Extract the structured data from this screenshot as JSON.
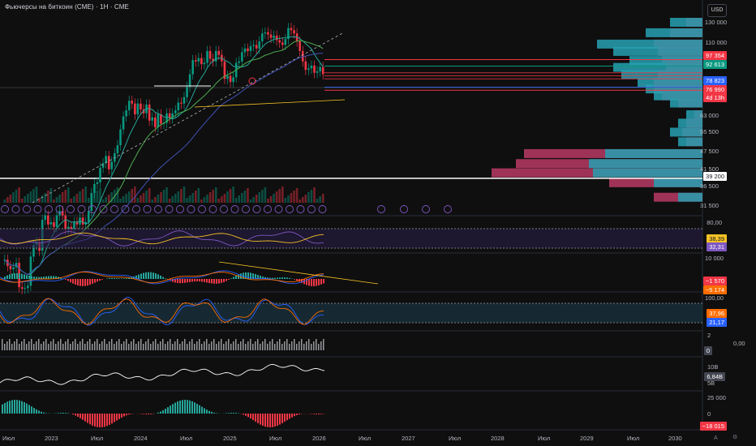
{
  "header": {
    "title": "Фьючерсы на биткоин (CME) · 1Н · CME",
    "currency": "USD"
  },
  "price_axis": {
    "ticks": [
      "130 000",
      "110 000",
      "63 000",
      "55 500",
      "47 500",
      "41 500",
      "36 500",
      "31 500"
    ]
  },
  "price_badges": [
    {
      "label": "97 354",
      "color": "#f23645"
    },
    {
      "label": "92 613",
      "color": "#089981"
    },
    {
      "label": "78 823",
      "color": "#2962ff"
    },
    {
      "label": "76 990",
      "color": "#f23645"
    },
    {
      "label": "4d 13h",
      "color": "#f23645"
    },
    {
      "label": "39 200",
      "color": "#ffffff",
      "text_color": "#131722"
    }
  ],
  "rsi_panel": {
    "ticks": [
      "80,00"
    ],
    "badges": [
      {
        "label": "38,39",
        "color": "#f7c325",
        "text_color": "#131722"
      },
      {
        "label": "32,31",
        "color": "#7e57c2"
      }
    ]
  },
  "macd_panel": {
    "ticks": [
      "10 000"
    ],
    "badges": [
      {
        "label": "−1 570",
        "color": "#f23645"
      },
      {
        "label": "−5 174",
        "color": "#ff6d00"
      }
    ]
  },
  "stoch_panel": {
    "ticks": [
      "100,00"
    ],
    "badges": [
      {
        "label": "37,96",
        "color": "#ff6d00"
      },
      {
        "label": "21,17",
        "color": "#2962ff"
      }
    ]
  },
  "vol_panel": {
    "ticks": [
      "2"
    ],
    "badges": [
      {
        "label": "0",
        "color": "#434651"
      }
    ],
    "extra": "0,00"
  },
  "obv_panel": {
    "ticks": [
      "10B",
      "5B"
    ],
    "badges": [
      {
        "label": "6,84B",
        "color": "#434651"
      }
    ]
  },
  "osc_panel": {
    "ticks": [
      "25 000",
      "0"
    ],
    "badges": [
      {
        "label": "−18 015",
        "color": "#f23645"
      }
    ]
  },
  "time_axis": {
    "labels": [
      "Июл",
      "2023",
      "Июл",
      "2024",
      "Июл",
      "2025",
      "Июл",
      "2026",
      "Июл",
      "2027",
      "Июл",
      "2028",
      "Июл",
      "2029",
      "Июл",
      "2030"
    ]
  },
  "footer": {
    "left": "A",
    "right": "⚙"
  },
  "chart_data": {
    "type": "candlestick",
    "instrument": "Фьючерсы на биткоин (CME)",
    "interval": "1Н",
    "x_range": [
      "2022-08",
      "2026-01"
    ],
    "y_range": [
      31500,
      130000
    ],
    "close": [
      21000,
      20000,
      19500,
      19800,
      20500,
      17000,
      16800,
      16900,
      17200,
      21500,
      23500,
      24000,
      22500,
      28500,
      29500,
      27500,
      28000,
      27000,
      29500,
      30500,
      29500,
      26500,
      27000,
      26500,
      28000,
      27500,
      29000,
      27500,
      28000,
      30500,
      35000,
      37500,
      38000,
      42500,
      44000,
      46500,
      42000,
      44500,
      47500,
      50500,
      57000,
      63000,
      66000,
      71000,
      69500,
      64000,
      69500,
      66500,
      64500,
      69000,
      61000,
      62500,
      58000,
      64000,
      59500,
      60000,
      64500,
      62000,
      64500,
      66000,
      70000,
      69500,
      73000,
      79000,
      87000,
      97000,
      96000,
      98500,
      94000,
      95000,
      104000,
      98000,
      96000,
      104000,
      101000,
      96000,
      84000,
      86000,
      82000,
      85000,
      95000,
      96000,
      103000,
      106000,
      104000,
      108000,
      109000,
      106000,
      112000,
      119000,
      120000,
      118000,
      115000,
      117000,
      113000,
      111000,
      109000,
      114000,
      124000,
      122000,
      119000,
      112000,
      104000,
      96000,
      90000,
      91000,
      93000,
      88000,
      89000,
      92000,
      87000
    ],
    "volume_profile_side": "right",
    "reference_levels": [
      97354,
      92613,
      78823,
      76990,
      39200
    ],
    "countdown": "4d 13h",
    "indicators": {
      "rsi": {
        "last": [
          38.39,
          32.31
        ]
      },
      "macd": {
        "last": [
          -1570,
          -5174
        ]
      },
      "stochastic": {
        "last": [
          37.96,
          21.17
        ]
      },
      "obv_last": "6,84B",
      "oscillator_last": -18015
    }
  }
}
